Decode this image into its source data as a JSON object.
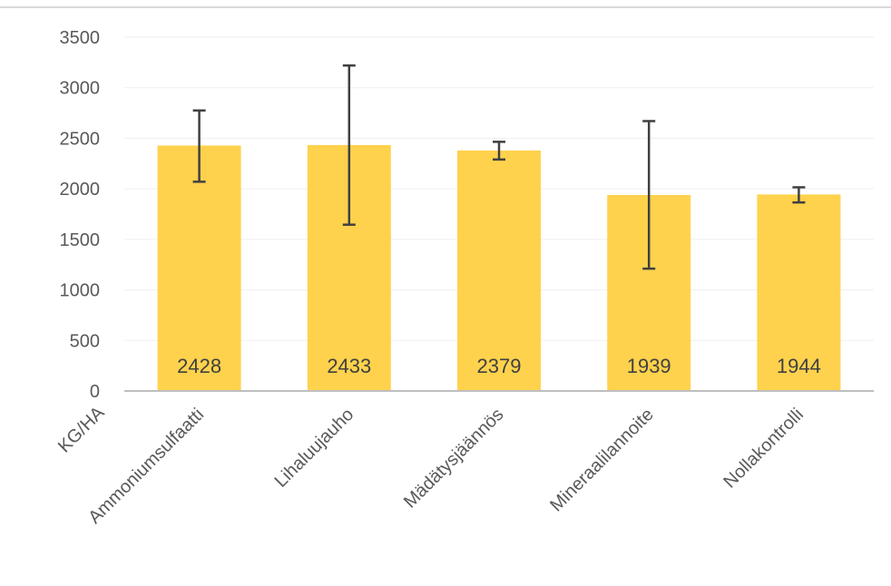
{
  "chart_data": {
    "type": "bar",
    "categories": [
      "Ammoniumsulfaatti",
      "Lihaluujauho",
      "Mädätysjäännös",
      "Mineraalilannoite",
      "Nollakontrolli"
    ],
    "values": [
      2428,
      2433,
      2379,
      1939,
      1944
    ],
    "error_low": [
      2070,
      1645,
      2290,
      1210,
      1865
    ],
    "error_high": [
      2775,
      3220,
      2465,
      2670,
      2015
    ],
    "data_labels": [
      "2428",
      "2433",
      "2379",
      "1939",
      "1944"
    ],
    "y_ticks": [
      "0",
      "500",
      "1000",
      "1500",
      "2000",
      "2500",
      "3000",
      "3500"
    ],
    "ylim": [
      0,
      3500
    ],
    "xlabel": "KG/HA",
    "ylabel": "",
    "grid": true,
    "bar_color": "#ffd24d",
    "error_color": "#404040",
    "gridline_color": "#efefef",
    "axis_color": "#bfbfbf"
  }
}
